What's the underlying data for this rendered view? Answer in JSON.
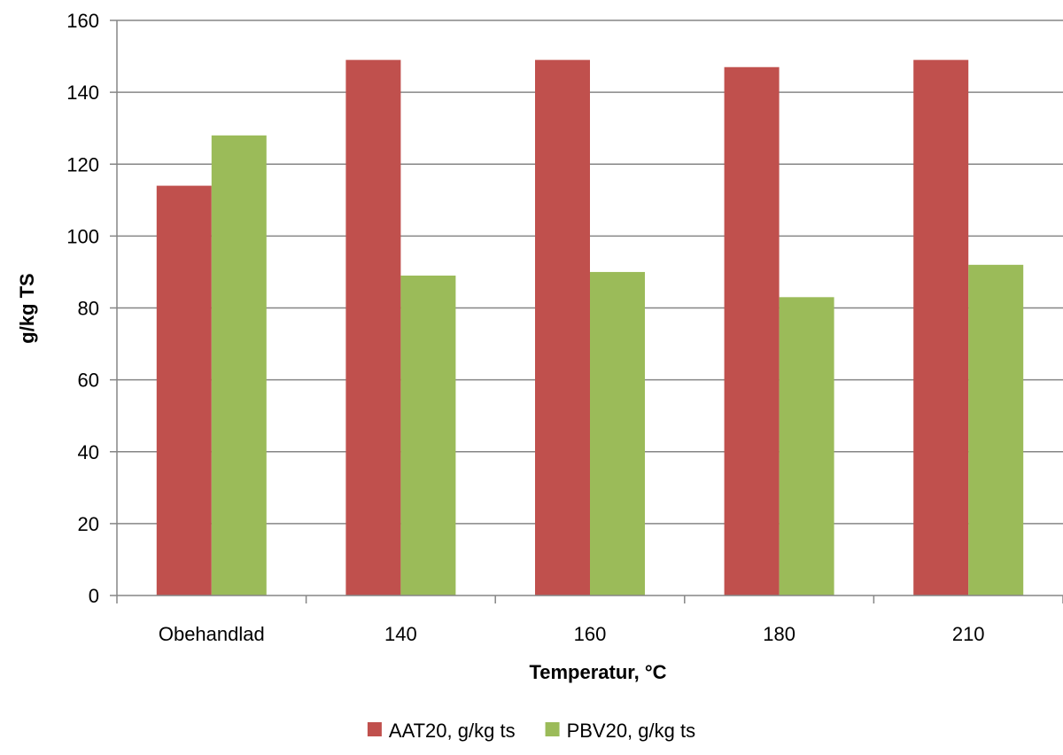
{
  "chart_data": {
    "type": "bar",
    "title": "",
    "xlabel": "Temperatur, °C",
    "ylabel": "g/kg TS",
    "categories": [
      "Obehandlad",
      "140",
      "160",
      "180",
      "210"
    ],
    "series": [
      {
        "name": "AAT20, g/kg ts",
        "color": "#c0504d",
        "values": [
          114,
          149,
          149,
          147,
          149
        ]
      },
      {
        "name": "PBV20, g/kg ts",
        "color": "#9bbb59",
        "values": [
          128,
          89,
          90,
          83,
          92
        ]
      }
    ],
    "ylim": [
      0,
      160
    ],
    "yticks": [
      0,
      20,
      40,
      60,
      80,
      100,
      120,
      140,
      160
    ],
    "grid": true,
    "legend": "bottom"
  }
}
